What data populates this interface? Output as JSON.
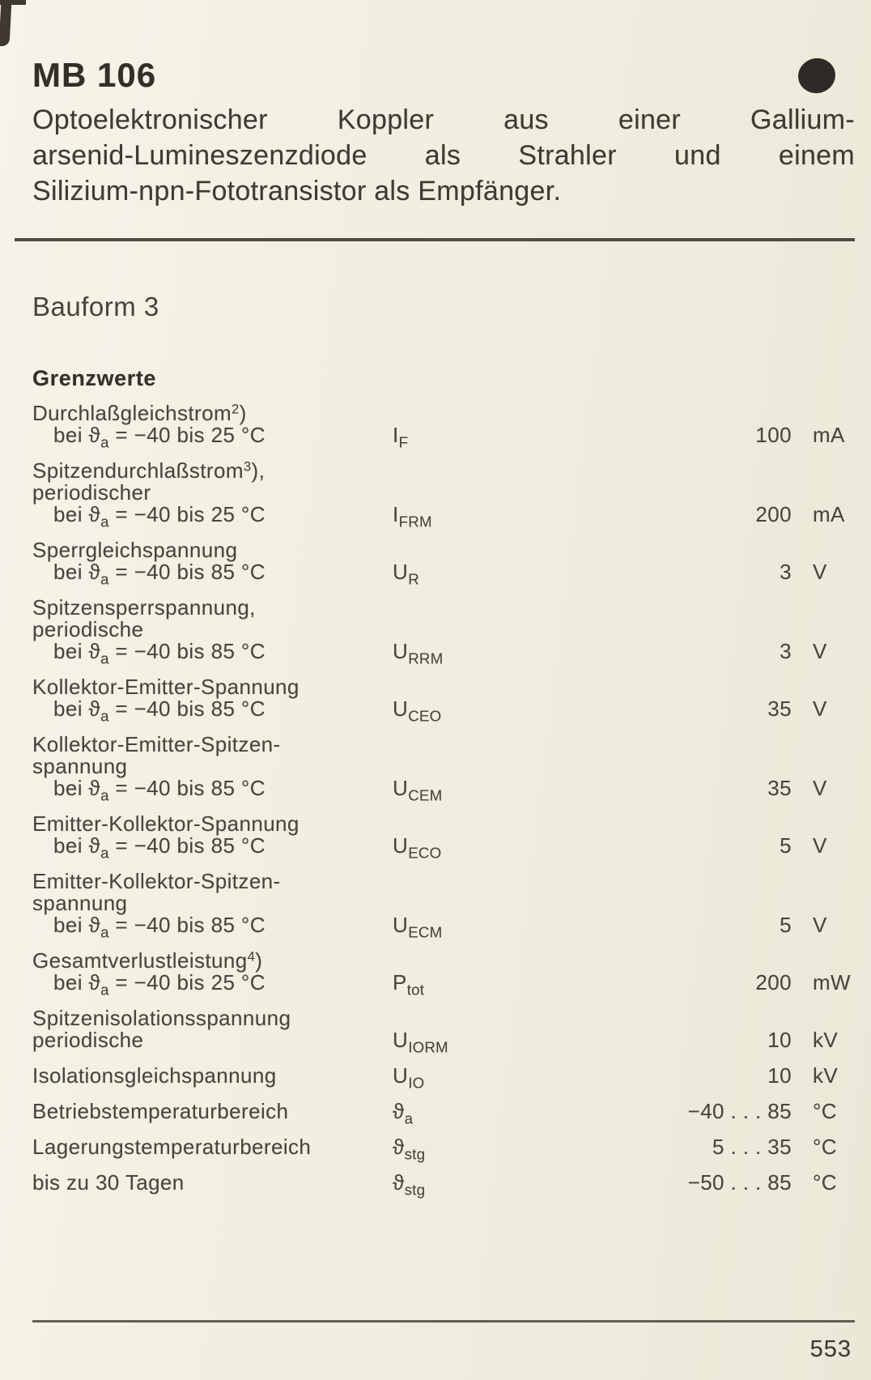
{
  "page": {
    "model": "MB 106",
    "description_lines": [
      "Optoelektronischer Koppler aus einer Gallium-",
      "arsenid-Lumineszenzdiode als Strahler und einem",
      "Silizium-npn-Fototransistor als Empfänger."
    ],
    "bauform": "Bauform 3",
    "page_number": "553"
  },
  "grenzwerte": {
    "heading": "Grenzwerte",
    "rows": [
      {
        "label_lines": [
          {
            "parts": [
              {
                "t": "Durchlaßgleichstrom"
              },
              {
                "sup": "2"
              },
              {
                "t": ")"
              }
            ]
          },
          {
            "indent": true,
            "parts": [
              {
                "t": "bei "
              },
              {
                "t": "ϑ"
              },
              {
                "sub": "a"
              },
              {
                "t": " = −40 bis 25 °C"
              }
            ]
          }
        ],
        "symbol": [
          {
            "t": "I"
          },
          {
            "sub": "F"
          }
        ],
        "value": "100",
        "unit": "mA"
      },
      {
        "label_lines": [
          {
            "parts": [
              {
                "t": "Spitzendurchlaßstrom"
              },
              {
                "sup": "3"
              },
              {
                "t": "),"
              }
            ]
          },
          {
            "parts": [
              {
                "t": "periodischer"
              }
            ]
          },
          {
            "indent": true,
            "parts": [
              {
                "t": "bei "
              },
              {
                "t": "ϑ"
              },
              {
                "sub": "a"
              },
              {
                "t": " = −40 bis 25 °C"
              }
            ]
          }
        ],
        "symbol": [
          {
            "t": "I"
          },
          {
            "sub": "FRM"
          }
        ],
        "value": "200",
        "unit": "mA"
      },
      {
        "label_lines": [
          {
            "parts": [
              {
                "t": "Sperrgleichspannung"
              }
            ]
          },
          {
            "indent": true,
            "parts": [
              {
                "t": "bei "
              },
              {
                "t": "ϑ"
              },
              {
                "sub": "a"
              },
              {
                "t": " = −40 bis 85 °C"
              }
            ]
          }
        ],
        "symbol": [
          {
            "t": "U"
          },
          {
            "sub": "R"
          }
        ],
        "value": "3",
        "unit": "V"
      },
      {
        "label_lines": [
          {
            "parts": [
              {
                "t": "Spitzensperrspannung,"
              }
            ]
          },
          {
            "parts": [
              {
                "t": "periodische"
              }
            ]
          },
          {
            "indent": true,
            "parts": [
              {
                "t": "bei "
              },
              {
                "t": "ϑ"
              },
              {
                "sub": "a"
              },
              {
                "t": " = −40 bis 85 °C"
              }
            ]
          }
        ],
        "symbol": [
          {
            "t": "U"
          },
          {
            "sub": "RRM"
          }
        ],
        "value": "3",
        "unit": "V"
      },
      {
        "label_lines": [
          {
            "parts": [
              {
                "t": "Kollektor-Emitter-Spannung"
              }
            ]
          },
          {
            "indent": true,
            "parts": [
              {
                "t": "bei "
              },
              {
                "t": "ϑ"
              },
              {
                "sub": "a"
              },
              {
                "t": " = −40 bis 85 °C"
              }
            ]
          }
        ],
        "symbol": [
          {
            "t": "U"
          },
          {
            "sub": "CEO"
          }
        ],
        "value": "35",
        "unit": "V"
      },
      {
        "label_lines": [
          {
            "parts": [
              {
                "t": "Kollektor-Emitter-Spitzen-"
              }
            ]
          },
          {
            "parts": [
              {
                "t": "spannung"
              }
            ]
          },
          {
            "indent": true,
            "parts": [
              {
                "t": "bei "
              },
              {
                "t": "ϑ"
              },
              {
                "sub": "a"
              },
              {
                "t": " = −40 bis 85 °C"
              }
            ]
          }
        ],
        "symbol": [
          {
            "t": "U"
          },
          {
            "sub": "CEM"
          }
        ],
        "value": "35",
        "unit": "V"
      },
      {
        "label_lines": [
          {
            "parts": [
              {
                "t": "Emitter-Kollektor-Spannung"
              }
            ]
          },
          {
            "indent": true,
            "parts": [
              {
                "t": "bei "
              },
              {
                "t": "ϑ"
              },
              {
                "sub": "a"
              },
              {
                "t": " = −40 bis 85 °C"
              }
            ]
          }
        ],
        "symbol": [
          {
            "t": "U"
          },
          {
            "sub": "ECO"
          }
        ],
        "value": "5",
        "unit": "V"
      },
      {
        "label_lines": [
          {
            "parts": [
              {
                "t": "Emitter-Kollektor-Spitzen-"
              }
            ]
          },
          {
            "parts": [
              {
                "t": "spannung"
              }
            ]
          },
          {
            "indent": true,
            "parts": [
              {
                "t": "bei "
              },
              {
                "t": "ϑ"
              },
              {
                "sub": "a"
              },
              {
                "t": " = −40 bis 85 °C"
              }
            ]
          }
        ],
        "symbol": [
          {
            "t": "U"
          },
          {
            "sub": "ECM"
          }
        ],
        "value": "5",
        "unit": "V"
      },
      {
        "label_lines": [
          {
            "parts": [
              {
                "t": "Gesamtverlustleistung"
              },
              {
                "sup": "4"
              },
              {
                "t": ")"
              }
            ]
          },
          {
            "indent": true,
            "parts": [
              {
                "t": "bei "
              },
              {
                "t": "ϑ"
              },
              {
                "sub": "a"
              },
              {
                "t": " = −40 bis 25 °C"
              }
            ]
          }
        ],
        "symbol": [
          {
            "t": "P"
          },
          {
            "sub": "tot"
          }
        ],
        "value": "200",
        "unit": "mW"
      },
      {
        "label_lines": [
          {
            "parts": [
              {
                "t": "Spitzenisolationsspannung"
              }
            ]
          },
          {
            "parts": [
              {
                "t": "periodische"
              }
            ]
          }
        ],
        "symbol": [
          {
            "t": "U"
          },
          {
            "sub": "IORM"
          }
        ],
        "value": "10",
        "unit": "kV"
      },
      {
        "label_lines": [
          {
            "parts": [
              {
                "t": "Isolationsgleichspannung"
              }
            ]
          }
        ],
        "symbol": [
          {
            "t": "U"
          },
          {
            "sub": "IO"
          }
        ],
        "value": "10",
        "unit": "kV"
      },
      {
        "label_lines": [
          {
            "parts": [
              {
                "t": "Betriebstemperaturbereich"
              }
            ]
          }
        ],
        "symbol": [
          {
            "t": "ϑ"
          },
          {
            "sub": "a"
          }
        ],
        "value": "−40 . . . 85",
        "unit": "°C"
      },
      {
        "label_lines": [
          {
            "parts": [
              {
                "t": "Lagerungstemperaturbereich"
              }
            ]
          }
        ],
        "symbol": [
          {
            "t": "ϑ"
          },
          {
            "sub": "stg"
          }
        ],
        "value": "5 . . . 35",
        "unit": "°C"
      },
      {
        "label_lines": [
          {
            "parts": [
              {
                "t": "bis zu 30 Tagen"
              }
            ]
          }
        ],
        "symbol": [
          {
            "t": "ϑ"
          },
          {
            "sub": "stg"
          }
        ],
        "value": "−50 . . . 85",
        "unit": "°C"
      }
    ]
  }
}
